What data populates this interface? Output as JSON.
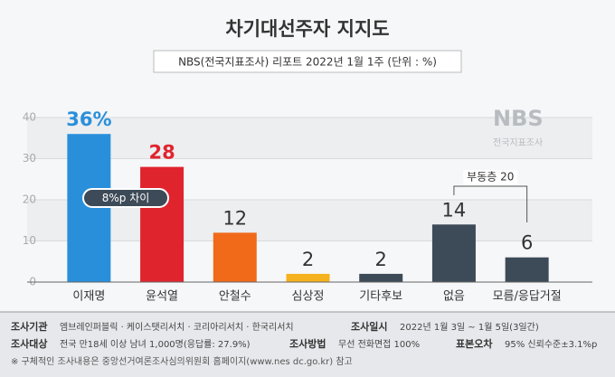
{
  "chart_data": {
    "type": "bar",
    "title": "차기대선주자 지지도",
    "subtitle": "NBS(전국지표조사) 리포트 2022년 1월 1주 (단위 : %)",
    "categories": [
      "이재명",
      "윤석열",
      "안철수",
      "심상정",
      "기타후보",
      "없음",
      "모름/응답거절"
    ],
    "values": [
      36,
      28,
      12,
      2,
      2,
      14,
      6
    ],
    "value_labels": [
      "36%",
      "28",
      "12",
      "2",
      "2",
      "14",
      "6"
    ],
    "colors": [
      "#2a8fdb",
      "#e0242e",
      "#f06a1a",
      "#f5b21e",
      "#3d4a57",
      "#3d4a57",
      "#3d4a57"
    ],
    "ylim": [
      0,
      40
    ],
    "yticks": [
      0,
      10,
      20,
      30,
      40
    ],
    "grid": true,
    "annotations": [
      "8%p 차이",
      "부동층 20"
    ],
    "logo": {
      "name": "NBS",
      "sub": "전국지표조사"
    }
  },
  "footer": {
    "items": [
      {
        "label": "조사기관",
        "value": "엠브레인퍼블릭 · 케이스탯리서치 · 코리아리서치 · 한국리서치"
      },
      {
        "label": "조사일시",
        "value": "2022년 1월 3일 ~ 1월 5일(3일간)"
      },
      {
        "label": "조사대상",
        "value": "전국 만18세 이상 남녀 1,000명(응답률: 27.9%)"
      },
      {
        "label": "조사방법",
        "value": "무선 전화면접 100%"
      },
      {
        "label": "표본오차",
        "value": "95% 신뢰수준±3.1%p"
      }
    ],
    "note": "※ 구체적인 조사내용은 중앙선거여론조사심의위원회 홈페이지(www.nes dc.go.kr) 참고"
  }
}
